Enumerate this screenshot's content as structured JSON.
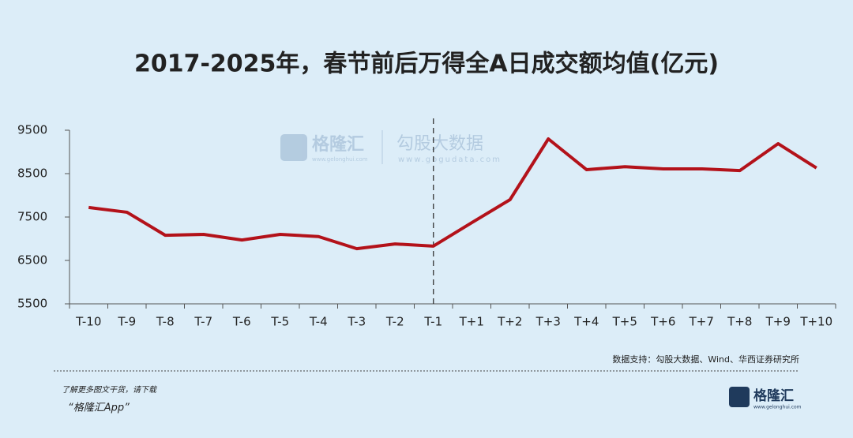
{
  "chart_data": {
    "type": "line",
    "title": "2017-2025年，春节前后万得全A日成交额均值(亿元)",
    "categories": [
      "T-10",
      "T-9",
      "T-8",
      "T-7",
      "T-6",
      "T-5",
      "T-4",
      "T-3",
      "T-2",
      "T-1",
      "T+1",
      "T+2",
      "T+3",
      "T+4",
      "T+5",
      "T+6",
      "T+7",
      "T+8",
      "T+9",
      "T+10"
    ],
    "values": [
      7720,
      7610,
      7080,
      7100,
      6970,
      7100,
      7050,
      6770,
      6880,
      6830,
      7370,
      7900,
      9300,
      8590,
      8660,
      8610,
      8610,
      8570,
      9190,
      8630
    ],
    "color": "#b3121a",
    "ylim": [
      5500,
      9500
    ],
    "yticks": [
      5500,
      6500,
      7500,
      8500,
      9500
    ],
    "divider": "T-1",
    "source": "数据支持：勾股大数据、Wind、华西证券研究所"
  },
  "watermark": {
    "brand": "格隆汇",
    "brand_url": "www.gelonghui.com",
    "data": "勾股大数据",
    "data_url": "www.gogudata.com"
  },
  "footer": {
    "line1": "了解更多图文干货，请下载",
    "line2": "“格隆汇App”",
    "logo": "格隆汇",
    "logo_url": "www.gelonghui.com"
  }
}
